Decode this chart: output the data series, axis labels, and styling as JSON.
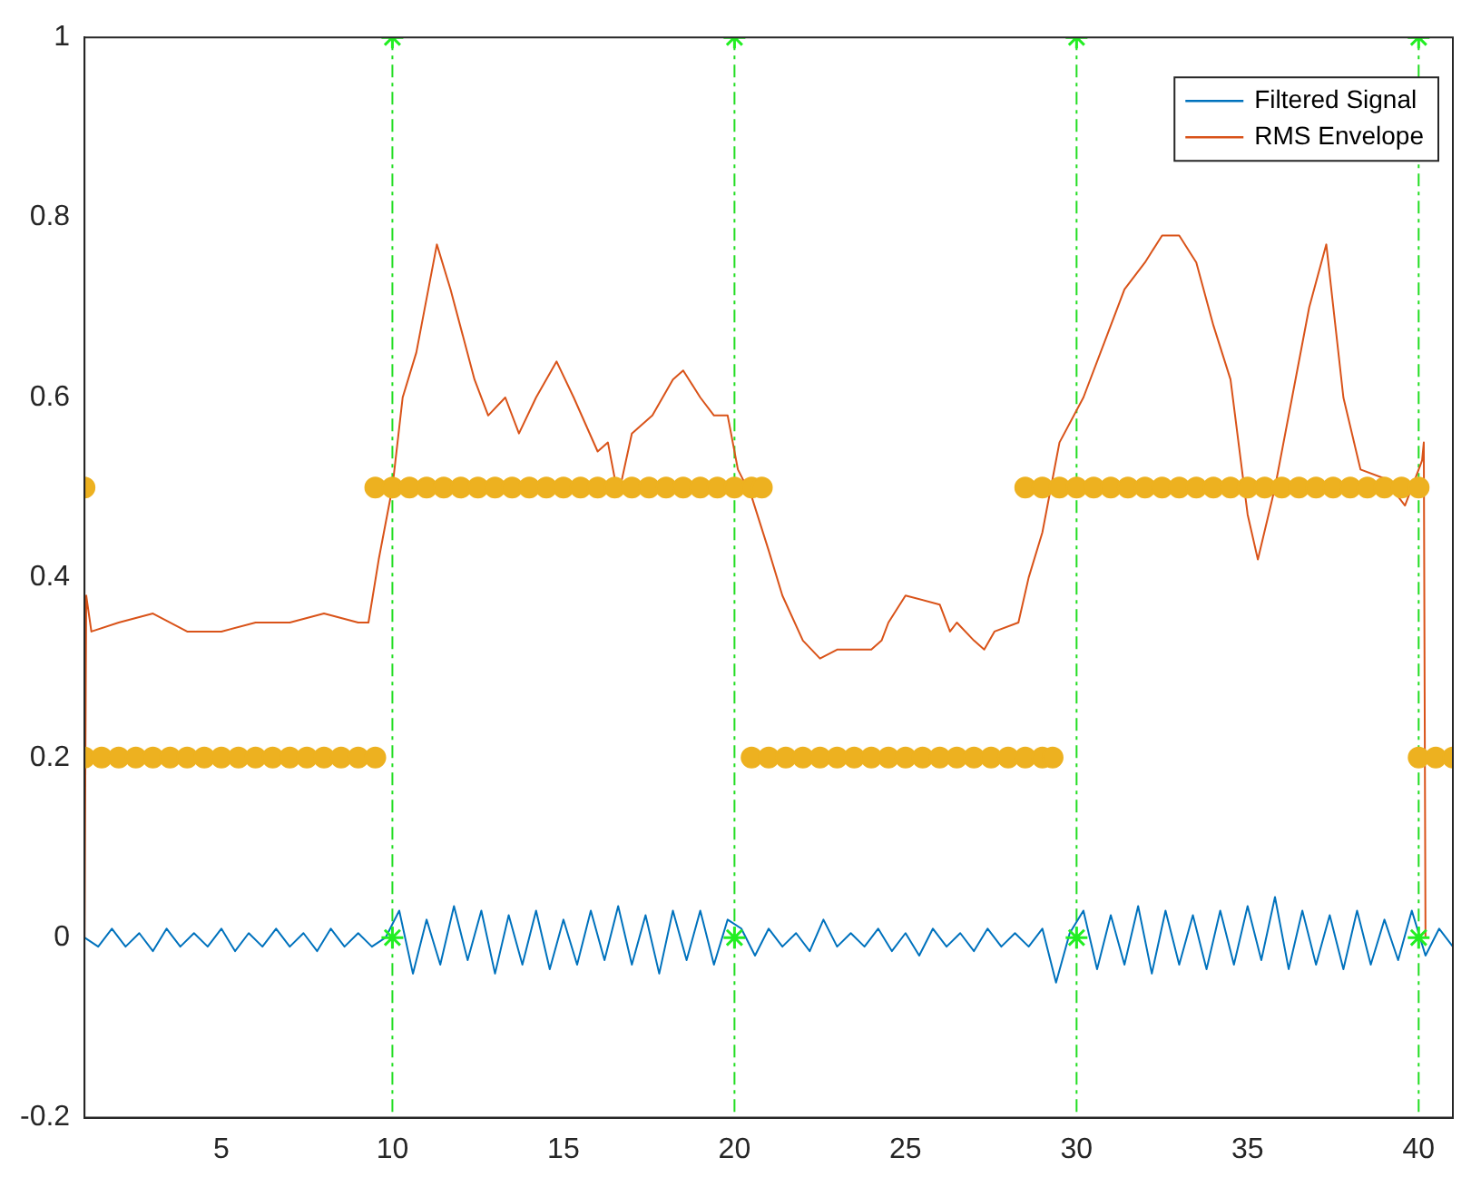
{
  "chart_data": {
    "type": "line",
    "xlim": [
      1,
      41
    ],
    "xticks": [
      5,
      10,
      15,
      20,
      25,
      30,
      35,
      40
    ],
    "ylim": [
      -0.2,
      1
    ],
    "yticks": [
      -0.2,
      0,
      0.2,
      0.4,
      0.6,
      0.8,
      1
    ],
    "grid": false,
    "legend": "top right",
    "series": [
      {
        "name": "Filtered Signal",
        "color": "#0072bd",
        "x": [
          1.0,
          1.4,
          1.8,
          2.2,
          2.6,
          3.0,
          3.4,
          3.8,
          4.2,
          4.6,
          5.0,
          5.4,
          5.8,
          6.2,
          6.6,
          7.0,
          7.4,
          7.8,
          8.2,
          8.6,
          9.0,
          9.4,
          9.8,
          10.2,
          10.6,
          11.0,
          11.4,
          11.8,
          12.2,
          12.6,
          13.0,
          13.4,
          13.8,
          14.2,
          14.6,
          15.0,
          15.4,
          15.8,
          16.2,
          16.6,
          17.0,
          17.4,
          17.8,
          18.2,
          18.6,
          19.0,
          19.4,
          19.8,
          20.2,
          20.6,
          21.0,
          21.4,
          21.8,
          22.2,
          22.6,
          23.0,
          23.4,
          23.8,
          24.2,
          24.6,
          25.0,
          25.4,
          25.8,
          26.2,
          26.6,
          27.0,
          27.4,
          27.8,
          28.2,
          28.6,
          29.0,
          29.4,
          29.8,
          30.2,
          30.6,
          31.0,
          31.4,
          31.8,
          32.2,
          32.6,
          33.0,
          33.4,
          33.8,
          34.2,
          34.6,
          35.0,
          35.4,
          35.8,
          36.2,
          36.6,
          37.0,
          37.4,
          37.8,
          38.2,
          38.6,
          39.0,
          39.4,
          39.8,
          40.2,
          40.6,
          41.0
        ],
        "values": [
          0,
          -0.01,
          0.01,
          -0.01,
          0.005,
          -0.015,
          0.01,
          -0.01,
          0.005,
          -0.01,
          0.01,
          -0.015,
          0.005,
          -0.01,
          0.01,
          -0.01,
          0.005,
          -0.015,
          0.01,
          -0.01,
          0.005,
          -0.01,
          0,
          0.03,
          -0.04,
          0.02,
          -0.03,
          0.035,
          -0.025,
          0.03,
          -0.04,
          0.025,
          -0.03,
          0.03,
          -0.035,
          0.02,
          -0.03,
          0.03,
          -0.025,
          0.035,
          -0.03,
          0.025,
          -0.04,
          0.03,
          -0.025,
          0.03,
          -0.03,
          0.02,
          0.01,
          -0.02,
          0.01,
          -0.01,
          0.005,
          -0.015,
          0.02,
          -0.01,
          0.005,
          -0.01,
          0.01,
          -0.015,
          0.005,
          -0.02,
          0.01,
          -0.01,
          0.005,
          -0.015,
          0.01,
          -0.01,
          0.005,
          -0.01,
          0.01,
          -0.05,
          0.005,
          0.03,
          -0.035,
          0.025,
          -0.03,
          0.035,
          -0.04,
          0.03,
          -0.03,
          0.025,
          -0.035,
          0.03,
          -0.03,
          0.035,
          -0.025,
          0.045,
          -0.035,
          0.03,
          -0.03,
          0.025,
          -0.035,
          0.03,
          -0.03,
          0.02,
          -0.025,
          0.03,
          -0.02,
          0.01,
          -0.01
        ]
      },
      {
        "name": "RMS Envelope",
        "color": "#d95319",
        "x": [
          1.0,
          1.05,
          1.2,
          2,
          3,
          4,
          5,
          6,
          7,
          8,
          9,
          9.3,
          9.6,
          10,
          10.3,
          10.7,
          11.3,
          11.7,
          12.4,
          12.8,
          13.3,
          13.7,
          14.2,
          14.8,
          15.3,
          16,
          16.3,
          16.6,
          17,
          17.6,
          18.2,
          18.5,
          19,
          19.4,
          19.8,
          20.1,
          20.5,
          21,
          21.4,
          22,
          22.5,
          23,
          24,
          24.3,
          24.5,
          25,
          26,
          26.3,
          26.5,
          27,
          27.3,
          27.6,
          28.3,
          28.6,
          29,
          29.5,
          30.2,
          30.9,
          31.4,
          32,
          32.5,
          33,
          33.5,
          34,
          34.5,
          35,
          35.3,
          35.8,
          36.3,
          36.8,
          37.3,
          37.8,
          38.3,
          39,
          39.6,
          40.1,
          40.15,
          40.2
        ],
        "values": [
          0,
          0.38,
          0.34,
          0.35,
          0.36,
          0.34,
          0.34,
          0.35,
          0.35,
          0.36,
          0.35,
          0.35,
          0.42,
          0.5,
          0.6,
          0.65,
          0.77,
          0.72,
          0.62,
          0.58,
          0.6,
          0.56,
          0.6,
          0.64,
          0.6,
          0.54,
          0.55,
          0.49,
          0.56,
          0.58,
          0.62,
          0.63,
          0.6,
          0.58,
          0.58,
          0.52,
          0.49,
          0.43,
          0.38,
          0.33,
          0.31,
          0.32,
          0.32,
          0.33,
          0.35,
          0.38,
          0.37,
          0.34,
          0.35,
          0.33,
          0.32,
          0.34,
          0.35,
          0.4,
          0.45,
          0.55,
          0.6,
          0.67,
          0.72,
          0.75,
          0.78,
          0.78,
          0.75,
          0.68,
          0.62,
          0.47,
          0.42,
          0.5,
          0.6,
          0.7,
          0.77,
          0.6,
          0.52,
          0.51,
          0.48,
          0.53,
          0.55,
          0
        ]
      },
      {
        "type": "scatter",
        "marker": "circle",
        "color": "#edb120",
        "x": [
          1.0,
          1.5,
          2.0,
          2.5,
          3.0,
          3.5,
          4.0,
          4.5,
          5.0,
          5.5,
          6.0,
          6.5,
          7.0,
          7.5,
          8.0,
          8.5,
          9.0,
          9.5,
          9.5,
          10.0,
          10.5,
          11.0,
          11.5,
          12.0,
          12.5,
          13.0,
          13.5,
          14.0,
          14.5,
          15.0,
          15.5,
          16.0,
          16.5,
          17.0,
          17.5,
          18.0,
          18.5,
          19.0,
          19.5,
          20.0,
          20.5,
          20.8,
          20.5,
          21.0,
          21.5,
          22.0,
          22.5,
          23.0,
          23.5,
          24.0,
          24.5,
          25.0,
          25.5,
          26.0,
          26.5,
          27.0,
          27.5,
          28.0,
          28.5,
          29.0,
          29.3,
          28.5,
          29.0,
          29.5,
          30.0,
          30.5,
          31.0,
          31.5,
          32.0,
          32.5,
          33.0,
          33.5,
          34.0,
          34.5,
          35.0,
          35.5,
          36.0,
          36.5,
          37.0,
          37.5,
          38.0,
          38.5,
          39.0,
          39.5,
          40.0,
          40.0,
          40.5,
          41.0,
          1.0
        ],
        "values": [
          0.2,
          0.2,
          0.2,
          0.2,
          0.2,
          0.2,
          0.2,
          0.2,
          0.2,
          0.2,
          0.2,
          0.2,
          0.2,
          0.2,
          0.2,
          0.2,
          0.2,
          0.2,
          0.5,
          0.5,
          0.5,
          0.5,
          0.5,
          0.5,
          0.5,
          0.5,
          0.5,
          0.5,
          0.5,
          0.5,
          0.5,
          0.5,
          0.5,
          0.5,
          0.5,
          0.5,
          0.5,
          0.5,
          0.5,
          0.5,
          0.5,
          0.5,
          0.2,
          0.2,
          0.2,
          0.2,
          0.2,
          0.2,
          0.2,
          0.2,
          0.2,
          0.2,
          0.2,
          0.2,
          0.2,
          0.2,
          0.2,
          0.2,
          0.2,
          0.2,
          0.2,
          0.5,
          0.5,
          0.5,
          0.5,
          0.5,
          0.5,
          0.5,
          0.5,
          0.5,
          0.5,
          0.5,
          0.5,
          0.5,
          0.5,
          0.5,
          0.5,
          0.5,
          0.5,
          0.5,
          0.5,
          0.5,
          0.5,
          0.5,
          0.5,
          0.2,
          0.2,
          0.2,
          0.5
        ]
      },
      {
        "type": "scatter",
        "marker": "cross",
        "color": "#22ee22",
        "x": [
          10,
          10,
          20,
          20,
          30,
          30,
          40,
          40
        ],
        "values": [
          0,
          1,
          0,
          1,
          0,
          1,
          0,
          1
        ]
      }
    ],
    "ref_lines": [
      {
        "axis": "x",
        "value": 10,
        "color": "#22dd22",
        "line_style": "dashed"
      },
      {
        "axis": "x",
        "value": 20,
        "color": "#22dd22",
        "line_style": "dashed"
      },
      {
        "axis": "x",
        "value": 30,
        "color": "#22dd22",
        "line_style": "dashed"
      },
      {
        "axis": "x",
        "value": 40,
        "color": "#22dd22",
        "line_style": "dashed"
      }
    ]
  }
}
